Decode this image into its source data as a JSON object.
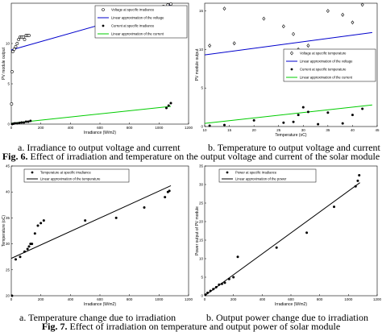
{
  "fig6": {
    "caption_num": "Fig. 6.",
    "caption_text": "Effect of irradiation and temperature on the output voltage and current of the solar module",
    "panel_a_caption": "a. Irradiance to output voltage and current",
    "panel_b_caption": "b. Temperature to output voltage and current"
  },
  "fig7": {
    "caption_num": "Fig. 7.",
    "caption_text": "Effect of irradiation on temperature and output power of solar module",
    "panel_a_caption": "a.    Temperature change due to irradiation",
    "panel_b_caption": "b.    Output power change due to irradiation"
  },
  "chart_data": [
    {
      "id": "fig6a",
      "type": "scatter",
      "xlabel": "Irradiance (W/m2)",
      "ylabel": "PV module output",
      "xlim": [
        0,
        1200
      ],
      "ylim": [
        0,
        15
      ],
      "xticks": [
        0,
        200,
        400,
        600,
        800,
        1000,
        1200
      ],
      "yticks": [
        0,
        5,
        10
      ],
      "legend_position": "top-right",
      "series": [
        {
          "name": "Voltage at specific irradiance",
          "kind": "points",
          "marker": "circle-open",
          "color": "#000000",
          "x": [
            2,
            5,
            10,
            20,
            30,
            40,
            50,
            60,
            70,
            80,
            90,
            100,
            110,
            120,
            1000,
            1030,
            1060,
            1080
          ],
          "y": [
            2.5,
            6.5,
            9,
            9.3,
            9.6,
            10,
            10.5,
            10.8,
            10.8,
            10.8,
            10.5,
            11,
            11,
            11,
            14.2,
            14.6,
            14.8,
            14.9
          ]
        },
        {
          "name": "Linear approximation of the voltage",
          "kind": "line",
          "color": "#0000cc",
          "x": [
            0,
            1080
          ],
          "y": [
            9.2,
            14.8
          ]
        },
        {
          "name": "Current at specific irradiance",
          "kind": "points",
          "marker": "dot",
          "color": "#000000",
          "x": [
            5,
            15,
            25,
            40,
            55,
            70,
            85,
            100,
            115,
            130,
            1050,
            1065,
            1080
          ],
          "y": [
            0,
            0.05,
            0.1,
            0.1,
            0.15,
            0.2,
            0.2,
            0.3,
            0.3,
            0.4,
            2.0,
            2.3,
            2.6
          ]
        },
        {
          "name": "Linear approximation of the current",
          "kind": "line",
          "color": "#00cc00",
          "x": [
            0,
            1080
          ],
          "y": [
            0.1,
            2.2
          ]
        }
      ]
    },
    {
      "id": "fig6b",
      "type": "scatter",
      "xlabel": "Temperature (oC)",
      "ylabel": "PV module output",
      "xlim": [
        10,
        45
      ],
      "ylim": [
        0,
        16
      ],
      "xticks": [
        10,
        15,
        20,
        25,
        30,
        35,
        40,
        45
      ],
      "yticks": [
        0,
        5,
        10,
        15
      ],
      "legend_position": "top-right",
      "series": [
        {
          "name": "Voltage at specific temperature",
          "kind": "points",
          "marker": "diamond-open",
          "color": "#000000",
          "x": [
            11,
            14,
            16,
            22,
            26,
            28,
            29,
            30,
            31,
            33,
            35,
            38,
            40,
            42
          ],
          "y": [
            10.5,
            15.3,
            10.8,
            14,
            13,
            12,
            10,
            9,
            10.5,
            6.5,
            15,
            14.5,
            13.5,
            15.8
          ]
        },
        {
          "name": "Linear approximation of the voltage",
          "kind": "line",
          "color": "#0000cc",
          "x": [
            10,
            44
          ],
          "y": [
            9.3,
            12.2
          ]
        },
        {
          "name": "Current at specific temperature",
          "kind": "points",
          "marker": "dot",
          "color": "#000000",
          "x": [
            11,
            14,
            20,
            26,
            28,
            29,
            30,
            31,
            33,
            35,
            38,
            40,
            42
          ],
          "y": [
            0.1,
            0.2,
            0.8,
            0.5,
            0.6,
            1.5,
            2.5,
            1.9,
            0.3,
            1.8,
            0.4,
            1.5,
            2.3
          ]
        },
        {
          "name": "Linear approximation of the current",
          "kind": "line",
          "color": "#00cc00",
          "x": [
            10,
            44
          ],
          "y": [
            0.4,
            2.8
          ]
        }
      ]
    },
    {
      "id": "fig7a",
      "type": "scatter",
      "xlabel": "Irradiance (W/m2)",
      "ylabel": "Temperature (oC)",
      "xlim": [
        0,
        1200
      ],
      "ylim": [
        20,
        45
      ],
      "xticks": [
        0,
        200,
        400,
        600,
        800,
        1000,
        1200
      ],
      "yticks": [
        20,
        25,
        30,
        35,
        40,
        45
      ],
      "legend_position": "top-left",
      "series": [
        {
          "name": "Temperature at specific irradiance",
          "kind": "points",
          "marker": "dot",
          "color": "#000000",
          "x": [
            5,
            30,
            60,
            90,
            110,
            120,
            130,
            140,
            160,
            180,
            200,
            220,
            500,
            710,
            900,
            1040,
            1060,
            1070
          ],
          "y": [
            20,
            27,
            27.5,
            28.5,
            29,
            29.5,
            30,
            30,
            32,
            33.5,
            34,
            34.5,
            34.5,
            35,
            37,
            39,
            40,
            40.2
          ]
        },
        {
          "name": "Linear approximation of the temperature",
          "kind": "line",
          "color": "#000000",
          "x": [
            0,
            1080
          ],
          "y": [
            27.2,
            41.2
          ]
        }
      ]
    },
    {
      "id": "fig7b",
      "type": "scatter",
      "xlabel": "Irradiance (W/m2)",
      "ylabel": "Power output of PV module",
      "xlim": [
        0,
        1200
      ],
      "ylim": [
        0,
        35
      ],
      "xticks": [
        0,
        200,
        400,
        600,
        800,
        1000,
        1200
      ],
      "yticks": [
        0,
        5,
        10,
        15,
        20,
        25,
        30,
        35
      ],
      "legend_position": "top-left",
      "series": [
        {
          "name": "Power at specific irradiance",
          "kind": "points",
          "marker": "dot",
          "color": "#000000",
          "x": [
            5,
            20,
            40,
            60,
            80,
            100,
            120,
            140,
            170,
            200,
            230,
            500,
            710,
            900,
            1050,
            1065,
            1075
          ],
          "y": [
            0.3,
            0.8,
            1.3,
            1.8,
            2.3,
            3,
            3.2,
            3.5,
            4.5,
            5,
            10.5,
            13,
            17,
            24,
            29.5,
            31,
            32.5
          ]
        },
        {
          "name": "Linear approximation of the power",
          "kind": "line",
          "color": "#000000",
          "x": [
            0,
            1080
          ],
          "y": [
            0,
            30.5
          ]
        }
      ]
    }
  ]
}
